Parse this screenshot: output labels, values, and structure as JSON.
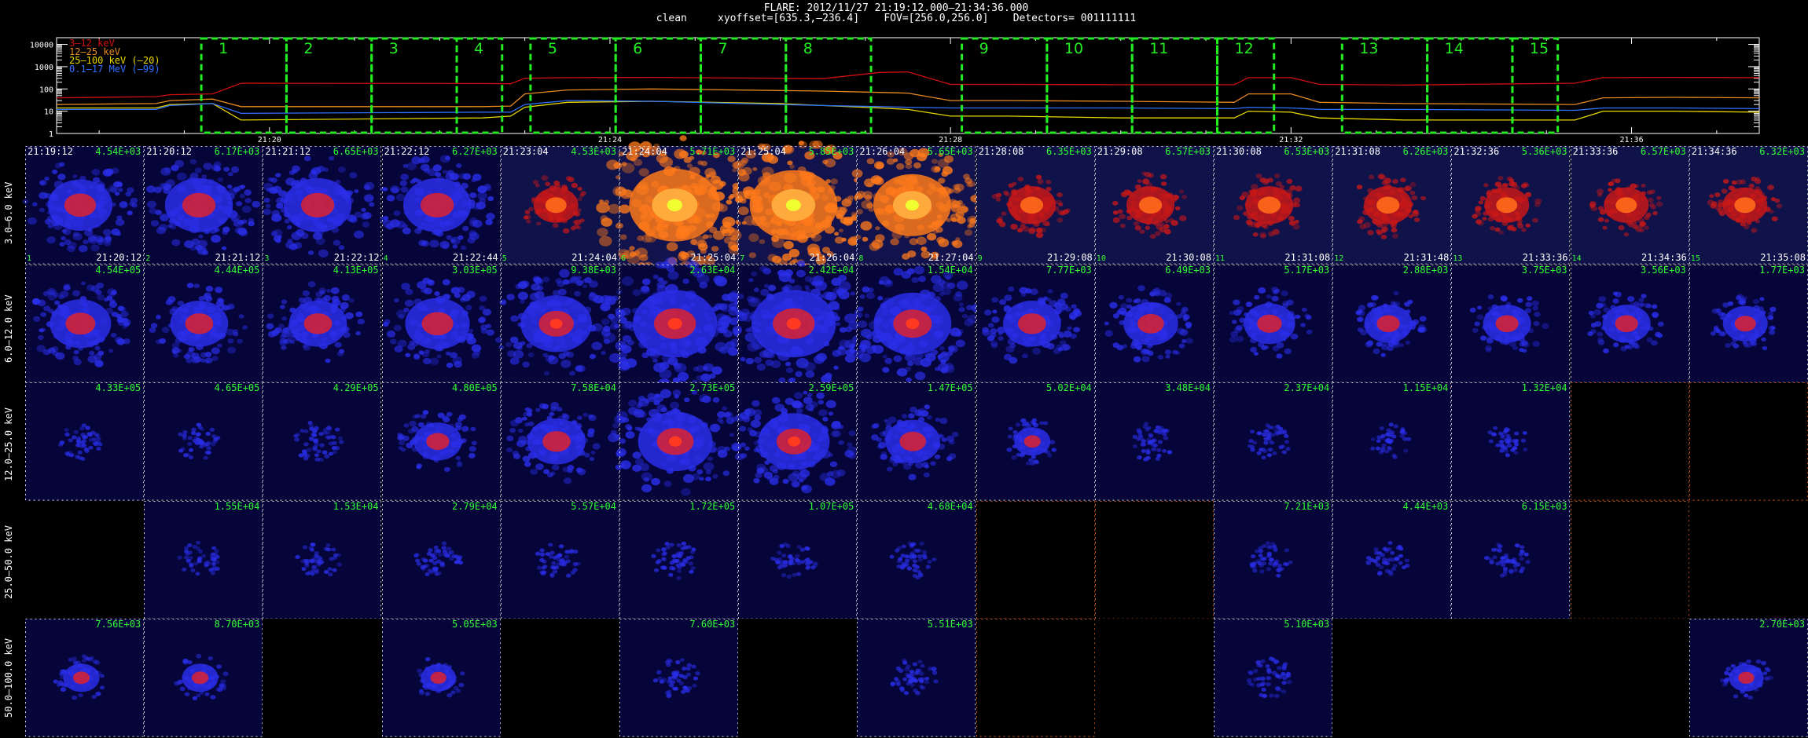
{
  "header": {
    "title": "FLARE: 2012/11/27 21:19:12.000–21:34:36.000",
    "subtitle": "clean     xyoffset=[635.3,–236.4]    FOV=[256.0,256.0]    Detectors= 001111111"
  },
  "lightcurve": {
    "legend": [
      {
        "name": "3–12 keV",
        "color": "#d01010"
      },
      {
        "name": "12–25 keV",
        "color": "#e88a20"
      },
      {
        "name": "25–100 keV (–20)",
        "color": "#e8d800"
      },
      {
        "name": "0.1–17 MeV (–99)",
        "color": "#3070ff"
      }
    ],
    "ytick_labels": [
      "10000",
      "1000",
      "100",
      "10",
      "1"
    ],
    "xtick_labels": [
      "21:20",
      "21:24",
      "21:28",
      "21:32",
      "21:36"
    ],
    "interval_labels": [
      "1",
      "2",
      "3",
      "4",
      "5",
      "6",
      "7",
      "8",
      "9",
      "10",
      "11",
      "12",
      "13",
      "14",
      "15"
    ],
    "box_color": "#22ee22"
  },
  "chart_data": {
    "type": "line",
    "yscale": "log",
    "ylim": [
      1,
      20000
    ],
    "x_unit": "time (UT)",
    "xlim": [
      "21:17:30",
      "21:37:30"
    ],
    "x": [
      "21:17:30",
      "21:18:40",
      "21:18:50",
      "21:19:20",
      "21:19:40",
      "21:22:30",
      "21:22:50",
      "21:23:00",
      "21:23:30",
      "21:24:30",
      "21:26:00",
      "21:26:30",
      "21:27:10",
      "21:27:30",
      "21:28:00",
      "21:28:40",
      "21:30:00",
      "21:31:20",
      "21:31:30",
      "21:32:00",
      "21:32:20",
      "21:33:20",
      "21:35:20",
      "21:35:40",
      "21:36:30",
      "21:37:30"
    ],
    "series": [
      {
        "name": "3–12 keV",
        "values": [
          40,
          45,
          55,
          60,
          180,
          175,
          170,
          300,
          320,
          330,
          300,
          290,
          550,
          580,
          160,
          160,
          155,
          155,
          320,
          320,
          160,
          150,
          180,
          320,
          330,
          320
        ]
      },
      {
        "name": "12–25 keV",
        "values": [
          20,
          22,
          30,
          35,
          16,
          16,
          17,
          60,
          90,
          100,
          85,
          80,
          70,
          65,
          30,
          30,
          28,
          25,
          60,
          60,
          25,
          22,
          20,
          40,
          42,
          40
        ]
      },
      {
        "name": "25–100 keV (–20)",
        "values": [
          14,
          14,
          20,
          22,
          4,
          5,
          6,
          15,
          25,
          28,
          22,
          18,
          14,
          12,
          6,
          6,
          5,
          5,
          10,
          9,
          5,
          4,
          4,
          10,
          10,
          9
        ]
      },
      {
        "name": "0.1–17 MeV (–99)",
        "values": [
          12,
          12,
          18,
          22,
          8,
          9,
          9,
          20,
          30,
          28,
          20,
          18,
          16,
          15,
          14,
          14,
          14,
          13,
          15,
          14,
          12,
          12,
          11,
          14,
          14,
          13
        ]
      }
    ],
    "intervals": [
      {
        "label": "1",
        "start": "21:19:12",
        "end": "21:20:12"
      },
      {
        "label": "2",
        "start": "21:20:12",
        "end": "21:21:12"
      },
      {
        "label": "3",
        "start": "21:21:12",
        "end": "21:22:12"
      },
      {
        "label": "4",
        "start": "21:22:12",
        "end": "21:22:44"
      },
      {
        "label": "5",
        "start": "21:23:04",
        "end": "21:24:04"
      },
      {
        "label": "6",
        "start": "21:24:04",
        "end": "21:25:04"
      },
      {
        "label": "7",
        "start": "21:25:04",
        "end": "21:26:04"
      },
      {
        "label": "8",
        "start": "21:26:04",
        "end": "21:27:04"
      },
      {
        "label": "9",
        "start": "21:28:08",
        "end": "21:29:08"
      },
      {
        "label": "10",
        "start": "21:29:08",
        "end": "21:30:08"
      },
      {
        "label": "11",
        "start": "21:30:08",
        "end": "21:31:08"
      },
      {
        "label": "12",
        "start": "21:31:08",
        "end": "21:31:48"
      },
      {
        "label": "13",
        "start": "21:32:36",
        "end": "21:33:36"
      },
      {
        "label": "14",
        "start": "21:33:36",
        "end": "21:34:36"
      },
      {
        "label": "15",
        "start": "21:34:36",
        "end": "21:35:08"
      }
    ]
  },
  "images": {
    "band_labels": [
      "3.0–6.0 keV",
      "6.0–12.0 keV",
      "12.0–25.0 keV",
      "25.0–50.0 keV",
      "50.0–100.0 keV"
    ],
    "start_times": [
      "21:19:12",
      "21:20:12",
      "21:21:12",
      "21:22:12",
      "21:23:04",
      "21:24:04",
      "21:25:04",
      "21:26:04",
      "21:28:08",
      "21:29:08",
      "21:30:08",
      "21:31:08",
      "21:32:36",
      "21:33:36",
      "21:34:36"
    ],
    "end_times": [
      "21:20:12",
      "21:21:12",
      "21:22:12",
      "21:22:44",
      "21:24:04",
      "21:25:04",
      "21:26:04",
      "21:27:04",
      "21:29:08",
      "21:30:08",
      "21:31:08",
      "21:31:48",
      "21:33:36",
      "21:34:36",
      "21:35:08"
    ],
    "index_labels": [
      "1",
      "2",
      "3",
      "4",
      "5",
      "6",
      "7",
      "8",
      "9",
      "10",
      "11",
      "12",
      "13",
      "14",
      "15"
    ],
    "rows": [
      {
        "flux": [
          "4.54E+03",
          "6.17E+03",
          "6.65E+03",
          "6.27E+03",
          "4.53E+03",
          "5.71E+03",
          "5.85E+03",
          "5.65E+03",
          "6.35E+03",
          "6.57E+03",
          "6.53E+03",
          "6.26E+03",
          "5.36E+03",
          "6.57E+03",
          "6.32E+03"
        ],
        "status": [
          "image",
          "image",
          "image",
          "image",
          "image",
          "image",
          "image",
          "image",
          "image",
          "image",
          "image",
          "image",
          "image",
          "image",
          "image"
        ],
        "level": [
          0.55,
          0.6,
          0.6,
          0.6,
          0.25,
          0.95,
          0.9,
          0.75,
          0.3,
          0.3,
          0.3,
          0.3,
          0.25,
          0.25,
          0.25
        ]
      },
      {
        "flux": [
          "4.54E+05",
          "4.44E+05",
          "4.13E+05",
          "3.03E+05",
          "9.38E+03",
          "2.63E+04",
          "2.42E+04",
          "1.54E+04",
          "7.77E+03",
          "6.49E+03",
          "5.17E+03",
          "2.88E+03",
          "3.75E+03",
          "3.56E+03",
          "1.77E+03"
        ],
        "status": [
          "image",
          "image",
          "image",
          "image",
          "image",
          "image",
          "image",
          "image",
          "image",
          "image",
          "image",
          "image",
          "image",
          "image",
          "image"
        ],
        "level": [
          0.5,
          0.45,
          0.45,
          0.55,
          0.65,
          0.85,
          0.85,
          0.75,
          0.45,
          0.4,
          0.35,
          0.3,
          0.3,
          0.3,
          0.25
        ]
      },
      {
        "flux": [
          "4.33E+05",
          "4.65E+05",
          "4.29E+05",
          "4.80E+05",
          "7.58E+04",
          "2.73E+05",
          "2.59E+05",
          "1.47E+05",
          "5.02E+04",
          "3.48E+04",
          "2.37E+04",
          "1.15E+04",
          "1.32E+04",
          "",
          ""
        ],
        "status": [
          "image",
          "image",
          "image",
          "image",
          "image",
          "image",
          "image",
          "image",
          "image",
          "image",
          "image",
          "image",
          "image",
          "empty",
          "empty"
        ],
        "level": [
          0.05,
          0.05,
          0.08,
          0.3,
          0.45,
          0.7,
          0.65,
          0.4,
          0.12,
          0.06,
          0.04,
          0.03,
          0.03,
          0,
          0
        ]
      },
      {
        "flux": [
          "",
          "1.55E+04",
          "1.53E+04",
          "2.79E+04",
          "5.57E+04",
          "1.72E+05",
          "1.07E+05",
          "4.68E+04",
          "",
          "",
          "7.21E+03",
          "4.44E+03",
          "6.15E+03",
          "",
          ""
        ],
        "status": [
          "blank",
          "image",
          "image",
          "image",
          "image",
          "image",
          "image",
          "image",
          "empty",
          "empty",
          "image",
          "image",
          "image",
          "empty",
          "blank"
        ],
        "level": [
          0,
          0.04,
          0.04,
          0.06,
          0.05,
          0.06,
          0.05,
          0.05,
          0,
          0,
          0.04,
          0.04,
          0.04,
          0,
          0
        ]
      },
      {
        "flux": [
          "7.56E+03",
          "8.70E+03",
          "",
          "5.05E+03",
          "",
          "7.60E+03",
          "",
          "5.51E+03",
          "",
          "",
          "5.10E+03",
          "",
          "",
          "",
          "2.70E+03"
        ],
        "status": [
          "image",
          "image",
          "blank",
          "image",
          "blank",
          "image",
          "blank",
          "image",
          "empty",
          "blank",
          "image",
          "blank",
          "blank",
          "blank",
          "image"
        ],
        "level": [
          0.12,
          0.12,
          0,
          0.1,
          0,
          0.07,
          0,
          0.07,
          0,
          0,
          0.07,
          0,
          0,
          0,
          0.1
        ]
      }
    ]
  }
}
